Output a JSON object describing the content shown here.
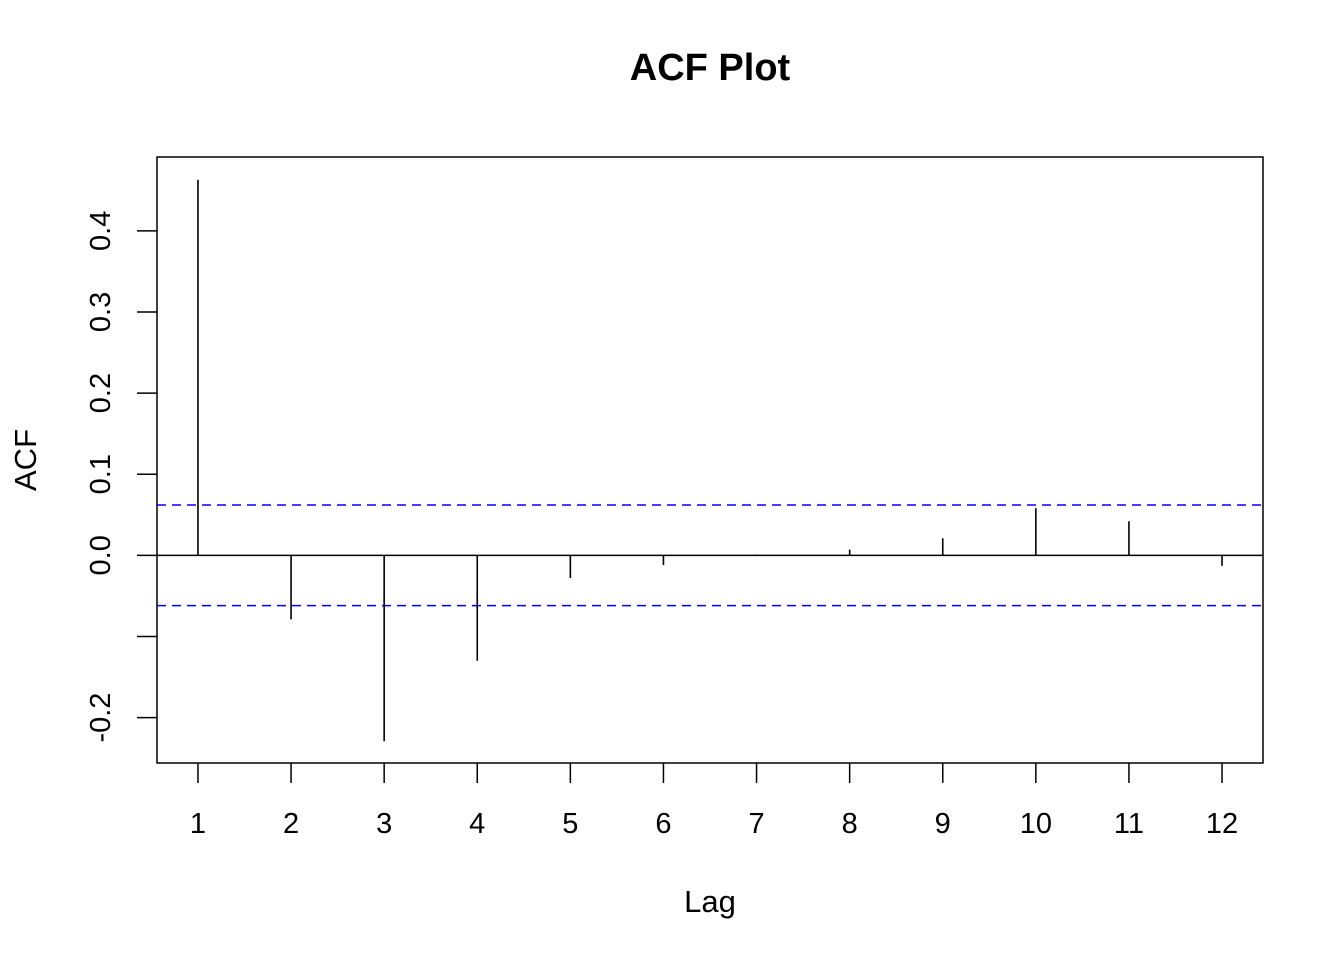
{
  "chart_data": {
    "type": "bar",
    "title": "ACF Plot",
    "xlabel": "Lag",
    "ylabel": "ACF",
    "x": [
      1,
      2,
      3,
      4,
      5,
      6,
      7,
      8,
      9,
      10,
      11,
      12
    ],
    "values": [
      0.463,
      -0.079,
      -0.229,
      -0.13,
      -0.028,
      -0.012,
      0.001,
      0.007,
      0.021,
      0.058,
      0.042,
      -0.013
    ],
    "x_ticks": [
      "1",
      "2",
      "3",
      "4",
      "5",
      "6",
      "7",
      "8",
      "9",
      "10",
      "11",
      "12"
    ],
    "y_ticks": [
      -0.2,
      -0.1,
      0.0,
      0.1,
      0.2,
      0.3,
      0.4
    ],
    "y_tick_labels": [
      "-0.2",
      "",
      "0.0",
      "0.1",
      "0.2",
      "0.3",
      "0.4"
    ],
    "xlim": [
      0.56,
      12.44
    ],
    "ylim": [
      -0.256,
      0.491
    ],
    "confidence_bounds": [
      0.062,
      -0.062
    ],
    "grid": false,
    "colors": {
      "bars": "#000000",
      "zero_line": "#000000",
      "confidence_lines": "#0000ff"
    }
  }
}
